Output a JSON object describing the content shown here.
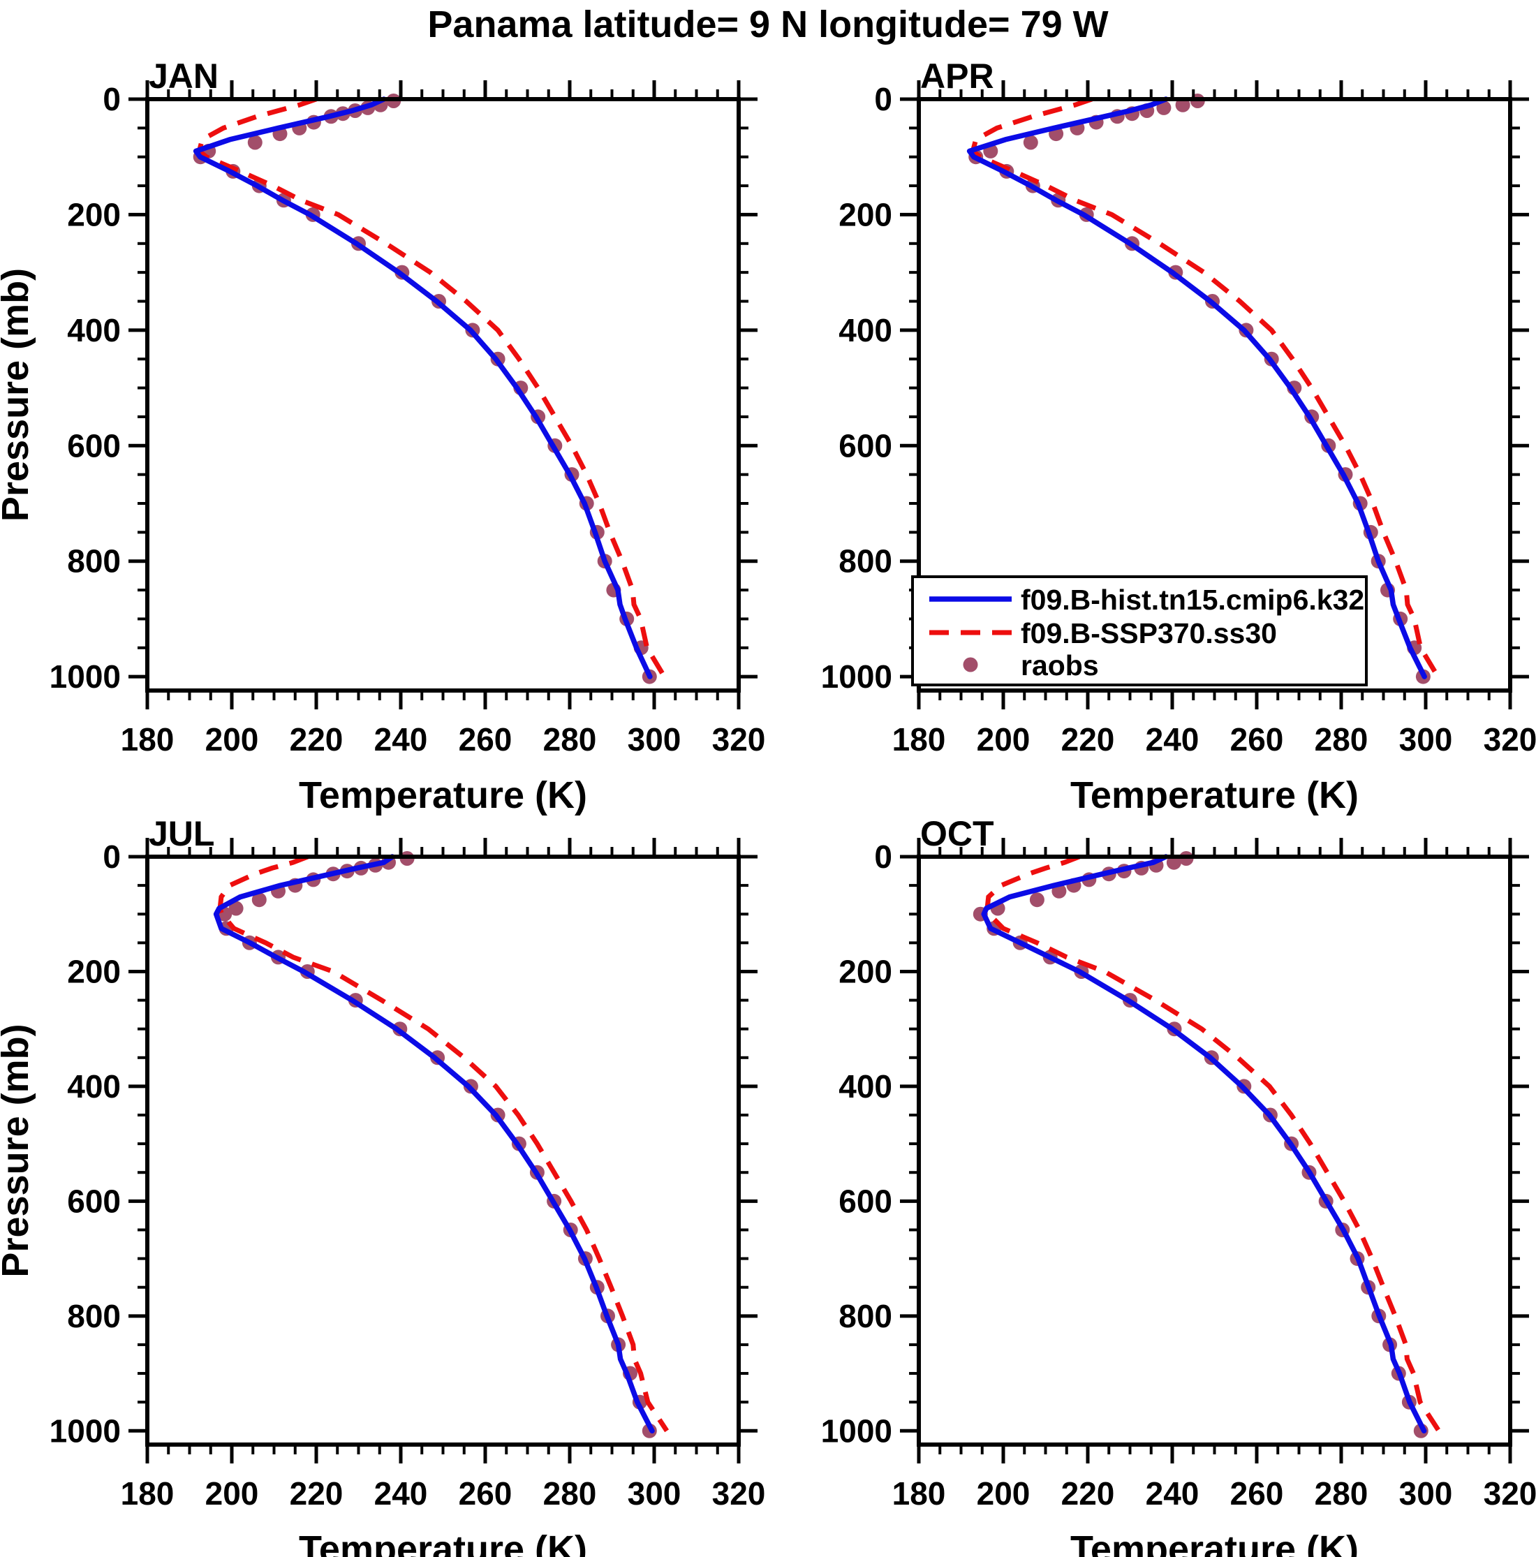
{
  "chart_data": {
    "type": "line",
    "title": "Panama  latitude= 9 N longitude= 79 W",
    "xlabel": "Temperature (K)",
    "ylabel": "Pressure (mb)",
    "xlim": [
      180,
      320
    ],
    "x_major_ticks": [
      180,
      200,
      220,
      240,
      260,
      280,
      300,
      320
    ],
    "x_tick_labels": [
      "180",
      "200",
      "220",
      "240",
      "260",
      "280",
      "300",
      "320"
    ],
    "x_minor_step": 5,
    "ylim_display": [
      0,
      1024
    ],
    "y_major_ticks": [
      0,
      200,
      400,
      600,
      800,
      1000
    ],
    "y_tick_labels": [
      "0",
      "200",
      "400",
      "600",
      "800",
      "1000"
    ],
    "y_minor_step": 50,
    "grid": false,
    "colors": {
      "hist": "#0B0BE6",
      "ssp": "#ED0E0E",
      "obs": "#A24E6A",
      "axis": "#000000"
    },
    "legend": {
      "position": "inside-APR-panel-lower-left",
      "entries": [
        {
          "label": "f09.B-hist.tn15.cmip6.k32",
          "style": "solid",
          "color": "#0B0BE6"
        },
        {
          "label": "f09.B-SSP370.ss30",
          "style": "dashed",
          "color": "#ED0E0E"
        },
        {
          "label": "raobs",
          "style": "dot",
          "color": "#A24E6A"
        }
      ]
    },
    "model_pressure_levels": [
      0,
      10,
      20,
      30,
      50,
      70,
      90,
      100,
      125,
      150,
      175,
      200,
      250,
      300,
      350,
      400,
      450,
      500,
      550,
      600,
      650,
      700,
      750,
      800,
      850,
      875,
      900,
      950,
      1000
    ],
    "obs_pressure_levels": [
      3,
      10,
      15,
      20,
      25,
      30,
      40,
      50,
      60,
      75,
      90,
      100,
      125,
      150,
      175,
      200,
      250,
      300,
      350,
      400,
      450,
      500,
      550,
      600,
      650,
      700,
      750,
      800,
      850,
      900,
      950,
      1000
    ],
    "panels": [
      {
        "label": "JAN",
        "hist": [
          236,
          233,
          228.5,
          223,
          211,
          199.5,
          191.5,
          192.5,
          199.5,
          206,
          212,
          218.5,
          229.5,
          239.5,
          248.5,
          256.5,
          262.5,
          267.5,
          272,
          276,
          280,
          283.5,
          286,
          288.3,
          291.4,
          291.9,
          293.1,
          295.8,
          299
        ],
        "ssp": [
          220,
          216,
          211,
          206,
          198,
          193,
          192.3,
          194,
          202,
          209.7,
          216.4,
          225.2,
          236.5,
          247,
          255.5,
          263,
          268,
          272.5,
          276.5,
          280.5,
          284,
          287,
          289.5,
          292.4,
          294.9,
          295.2,
          296.8,
          298.3,
          302.4
        ],
        "obs": [
          238.3,
          235.2,
          232.2,
          229.2,
          226.3,
          223.5,
          219.4,
          216,
          211.4,
          205.5,
          194.5,
          192.6,
          200.3,
          206.5,
          212.3,
          219.2,
          230,
          240.3,
          249,
          257,
          263,
          268.4,
          272.5,
          276.5,
          280.5,
          284,
          286.5,
          288.3,
          290.4,
          293.5,
          296.9,
          298.9
        ]
      },
      {
        "label": "APR",
        "hist": [
          238.5,
          235,
          230,
          224,
          212,
          200.5,
          192,
          193,
          200,
          206.5,
          212.5,
          219,
          230,
          240,
          249,
          257,
          263,
          268,
          272.5,
          276.5,
          280.5,
          284,
          286.5,
          288.8,
          291.8,
          292.3,
          293.6,
          296.3,
          299.7
        ],
        "ssp": [
          221,
          217,
          212,
          207,
          198.5,
          193.5,
          192.8,
          194.5,
          202.5,
          210.2,
          217,
          225.7,
          237,
          247.5,
          256,
          263.5,
          268.5,
          273,
          277,
          281,
          284.5,
          287.5,
          290,
          292.9,
          295.4,
          295.7,
          297.3,
          298.8,
          302.9
        ],
        "obs": [
          246,
          242.5,
          238,
          234,
          230.5,
          227,
          222,
          217.5,
          212.5,
          206.5,
          197,
          193.5,
          200.8,
          207,
          213,
          219.7,
          230.5,
          240.8,
          249.5,
          257.5,
          263.5,
          268.9,
          273,
          277,
          281,
          284.5,
          287,
          288.8,
          291,
          294,
          297.3,
          299.4
        ]
      },
      {
        "label": "JUL",
        "hist": [
          238,
          236,
          229.5,
          223.5,
          211.5,
          202,
          197,
          196.3,
          197.5,
          204.3,
          210.5,
          217,
          228.5,
          239,
          248,
          256,
          262.5,
          267.5,
          272,
          276,
          280,
          283.5,
          286.3,
          288.8,
          291.5,
          292,
          293.5,
          296,
          299.5
        ],
        "ssp": [
          218,
          214.5,
          209.5,
          205.5,
          199.5,
          197.5,
          197.2,
          197.6,
          200.5,
          208,
          214.5,
          224,
          235.5,
          246.5,
          255,
          262.5,
          267.8,
          272.3,
          276.3,
          280.3,
          284,
          287,
          289.8,
          292.5,
          295,
          295.3,
          296.8,
          298.5,
          303
        ],
        "obs": [
          241.5,
          237.1,
          234,
          230.6,
          227.3,
          224,
          219.3,
          215,
          211,
          206.5,
          201,
          198.3,
          198.7,
          204.2,
          211,
          217.9,
          229.3,
          239.8,
          248.7,
          256.6,
          263,
          268,
          272.3,
          276.3,
          280.2,
          283.7,
          286.5,
          289,
          291.5,
          294.3,
          296.6,
          298.9
        ]
      },
      {
        "label": "OCT",
        "hist": [
          238.5,
          235.5,
          229.5,
          223.5,
          212,
          201.5,
          196,
          195.4,
          197,
          204,
          211,
          218,
          229.5,
          240,
          249,
          256.5,
          263,
          268,
          272.5,
          276.5,
          280.5,
          284,
          286.5,
          289,
          291.8,
          292.3,
          293.8,
          296.2,
          299.6
        ],
        "ssp": [
          218,
          214.5,
          210,
          206,
          199.5,
          196.5,
          196.2,
          196.6,
          200,
          208,
          215,
          224,
          236,
          247,
          255.5,
          263,
          268.2,
          272.7,
          276.7,
          280.7,
          284.3,
          287.3,
          290,
          292.8,
          295.3,
          295.6,
          297.1,
          298.7,
          303.1
        ],
        "obs": [
          243.3,
          240.4,
          236.2,
          232.7,
          228.6,
          225,
          220.3,
          216.7,
          213.2,
          208,
          198.7,
          194.6,
          197.8,
          204,
          211.1,
          218.5,
          230,
          240.5,
          249.3,
          257,
          263.2,
          268.2,
          272.4,
          276.4,
          280.3,
          283.8,
          286.4,
          288.9,
          291.5,
          293.6,
          296.1,
          298.9
        ]
      }
    ]
  }
}
